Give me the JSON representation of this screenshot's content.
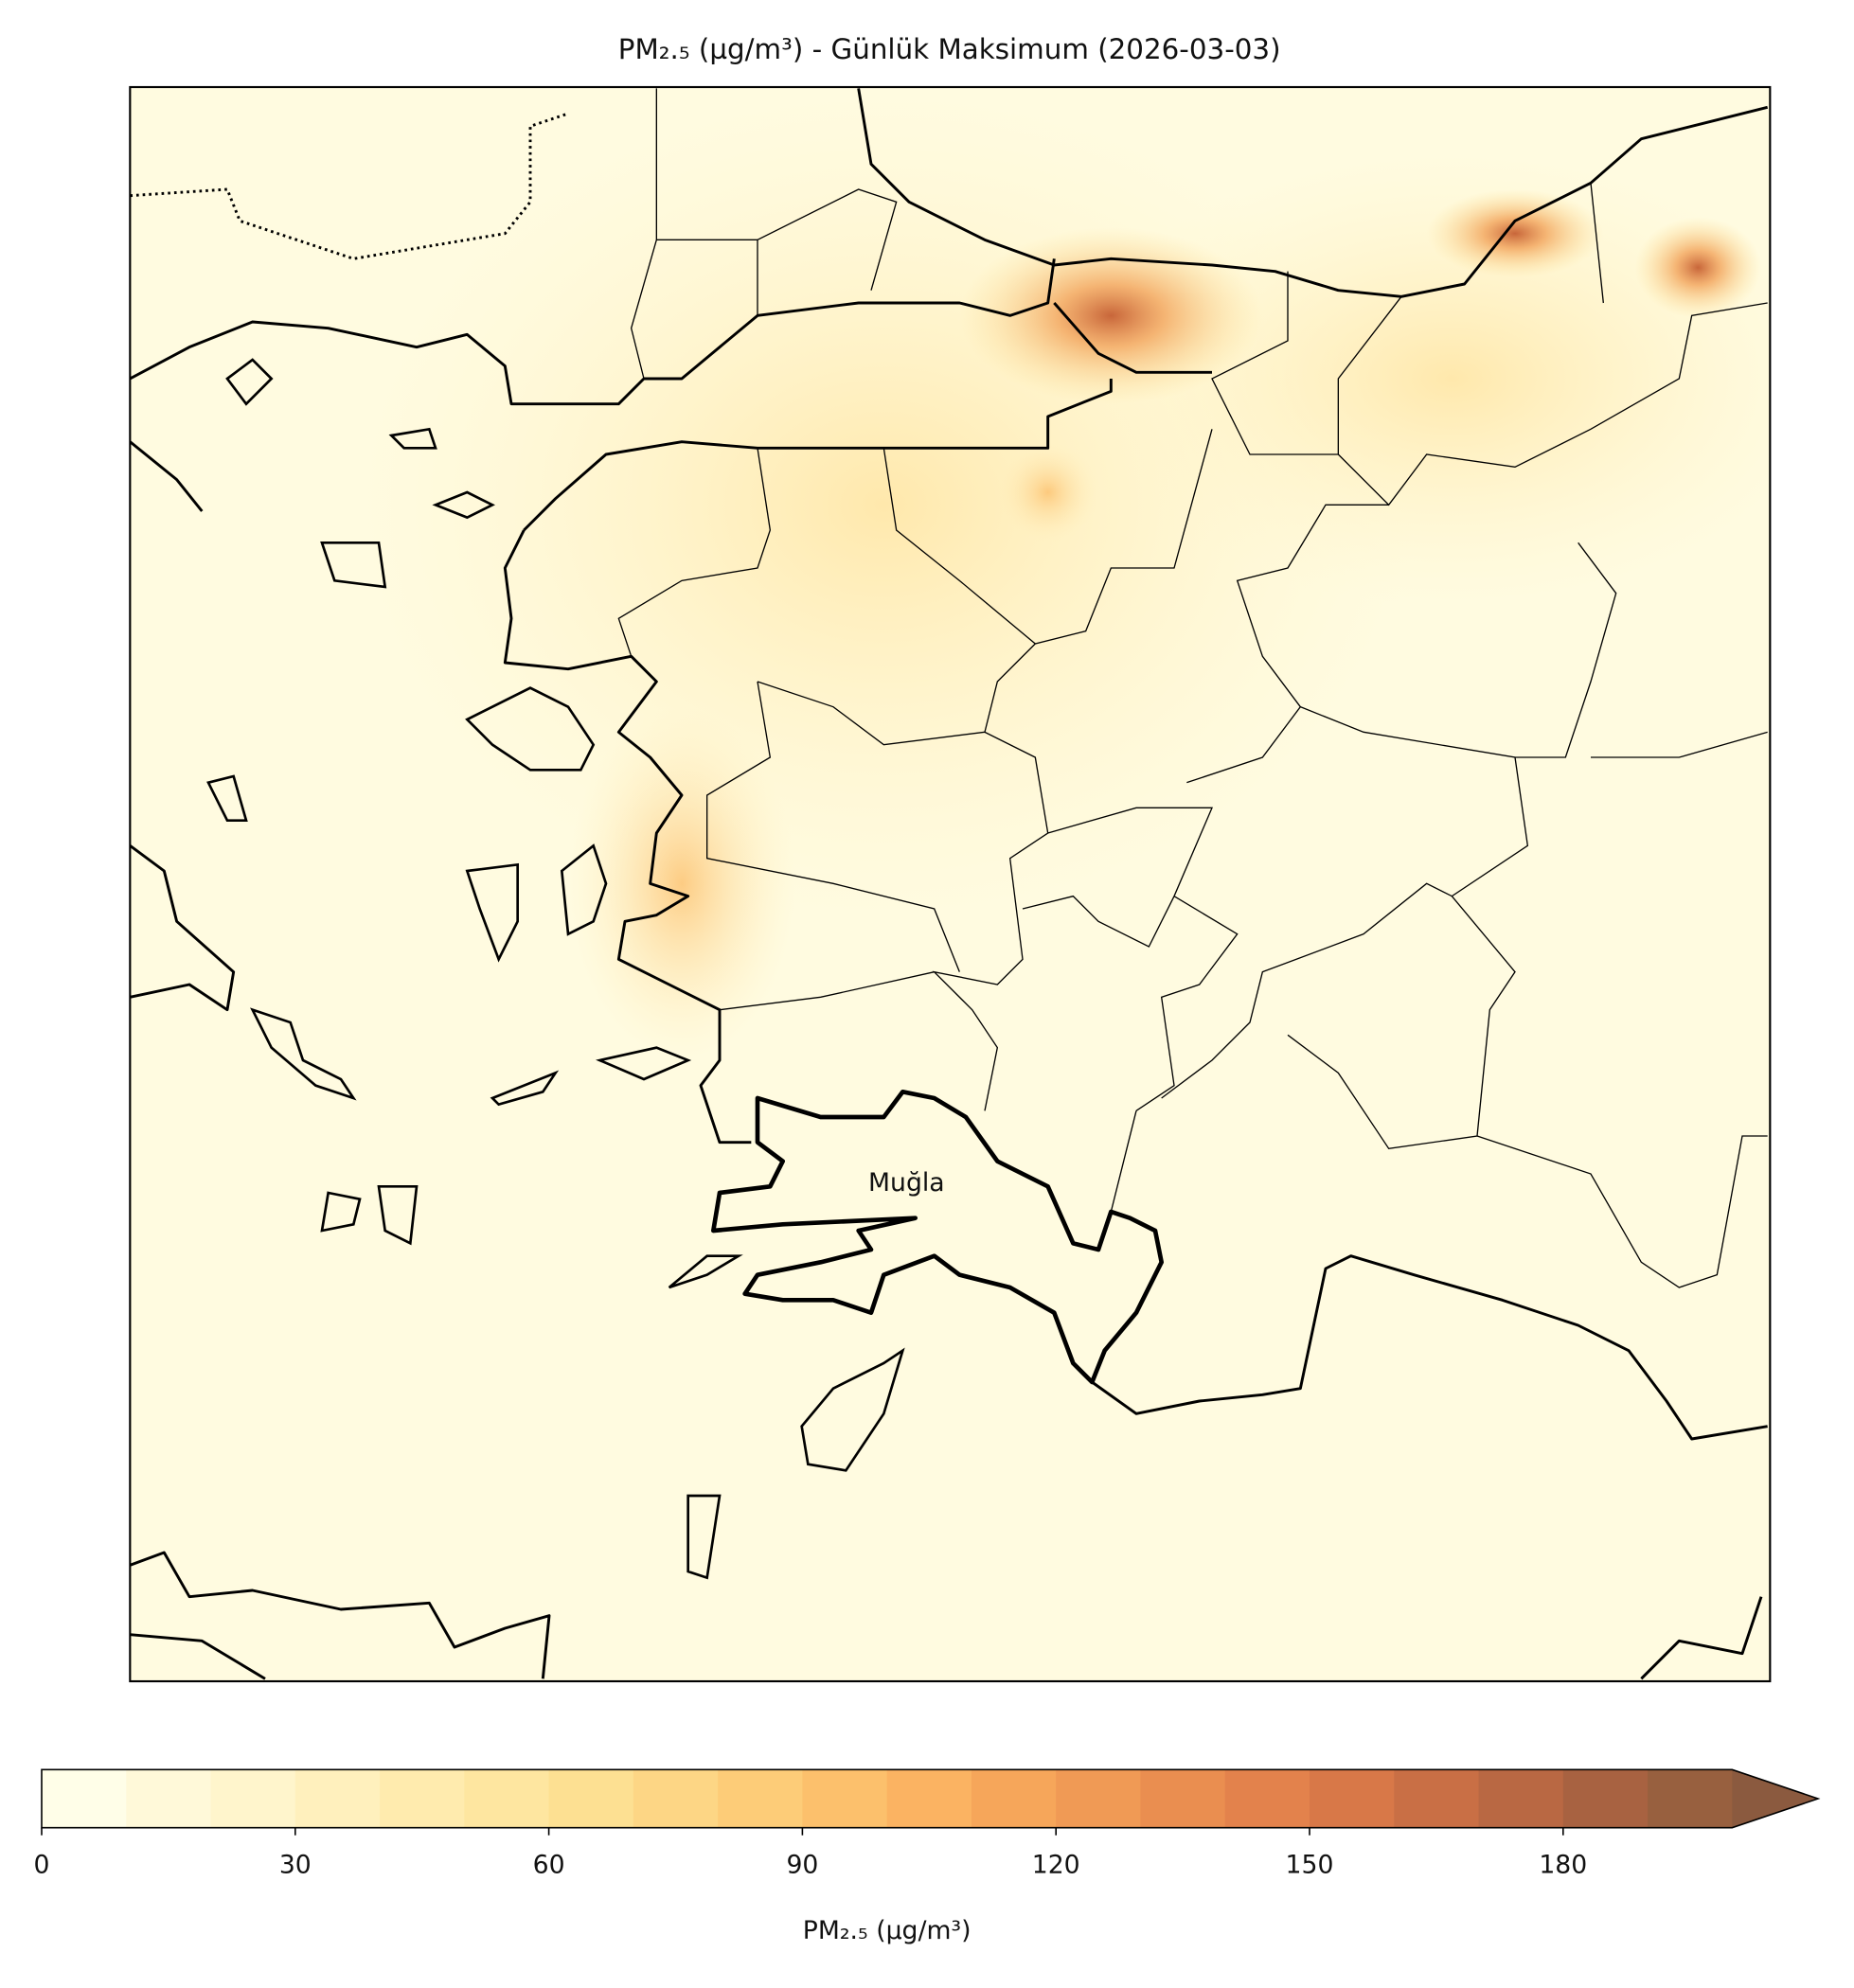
{
  "title": "PM₂.₅ (µg/m³) - Günlük Maksimum (2026-03-03)",
  "map": {
    "highlight_label": "Muğla"
  },
  "colorbar": {
    "label": "PM₂.₅ (µg/m³)",
    "levels": [
      0,
      10,
      20,
      30,
      40,
      50,
      60,
      70,
      80,
      90,
      100,
      110,
      120,
      130,
      140,
      150,
      160,
      170,
      180,
      190,
      200
    ],
    "colors": [
      "#fffee8",
      "#fff9d9",
      "#fff5cc",
      "#fff0bd",
      "#ffebae",
      "#fee6a0",
      "#fde092",
      "#fdd685",
      "#fdcc78",
      "#fcc06c",
      "#fbb362",
      "#f6a65a",
      "#f09a55",
      "#ea8e50",
      "#e3824c",
      "#d87848",
      "#c96f45",
      "#b96843",
      "#a86241",
      "#98603f"
    ],
    "extend_color": "#8b5a3f",
    "ticks": [
      0,
      30,
      60,
      90,
      120,
      150,
      180
    ]
  }
}
